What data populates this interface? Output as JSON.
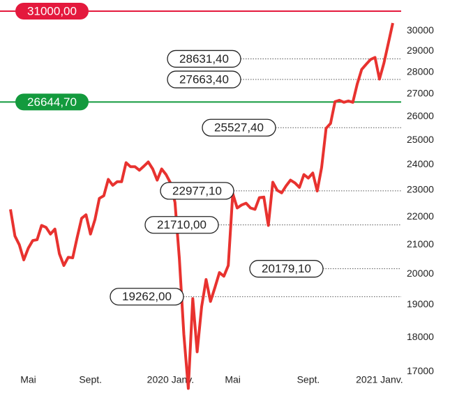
{
  "chart_data": {
    "type": "line",
    "categories": [
      null,
      null,
      null,
      null,
      "Mai",
      null,
      null,
      null,
      null,
      null,
      null,
      null,
      null,
      null,
      null,
      null,
      null,
      null,
      "Sept.",
      null,
      null,
      null,
      null,
      null,
      null,
      null,
      null,
      null,
      null,
      null,
      null,
      null,
      null,
      null,
      null,
      null,
      "2020 Janv.",
      null,
      null,
      null,
      null,
      null,
      null,
      null,
      null,
      null,
      null,
      null,
      null,
      null,
      "Mai",
      null,
      null,
      null,
      null,
      null,
      null,
      null,
      null,
      null,
      null,
      null,
      null,
      null,
      null,
      null,
      null,
      "Sept.",
      null,
      null,
      null,
      null,
      null,
      null,
      null,
      null,
      null,
      null,
      null,
      null,
      null,
      null,
      null,
      "2021 Janv.",
      null,
      null,
      null
    ],
    "values": [
      22280,
      21310,
      21000,
      20480,
      20880,
      21150,
      21180,
      21690,
      21620,
      21380,
      21560,
      20690,
      20290,
      20570,
      20550,
      21260,
      21950,
      22080,
      21380,
      21900,
      22690,
      22790,
      23420,
      23190,
      23330,
      23330,
      24080,
      23920,
      23920,
      23780,
      23940,
      24110,
      23830,
      23390,
      23830,
      23610,
      23280,
      22540,
      20520,
      18090,
      16530,
      19200,
      17570,
      18940,
      19820,
      19110,
      19560,
      20050,
      19930,
      20290,
      22870,
      22330,
      22440,
      22510,
      22330,
      22280,
      22720,
      22740,
      21690,
      23310,
      23000,
      22900,
      23170,
      23390,
      23280,
      23110,
      23610,
      23470,
      23670,
      22970,
      23890,
      25500,
      25710,
      26660,
      26720,
      26630,
      26690,
      26630,
      27450,
      28130,
      28370,
      28600,
      28700,
      27680,
      28430,
      29380,
      30390
    ],
    "color": "#e8322f",
    "ylim": [
      16500,
      31000
    ],
    "yticks": [
      17000,
      18000,
      19000,
      20000,
      21000,
      22000,
      23000,
      24000,
      25000,
      26000,
      27000,
      28000,
      29000,
      30000
    ],
    "log_scale": true,
    "reference_lines": [
      {
        "value": 31000,
        "label": "31000,00",
        "color": "#e4193d"
      },
      {
        "value": 26644.7,
        "label": "26644,70",
        "color": "#139a3d"
      }
    ],
    "annotations": [
      {
        "value": 28631.4,
        "label": "28631,40"
      },
      {
        "value": 27663.4,
        "label": "27663,40"
      },
      {
        "value": 25527.4,
        "label": "25527,40"
      },
      {
        "value": 22977.1,
        "label": "22977,10"
      },
      {
        "value": 21710.0,
        "label": "21710,00"
      },
      {
        "value": 20179.1,
        "label": "20179,10"
      },
      {
        "value": 19262.0,
        "label": "19262,00"
      }
    ]
  }
}
